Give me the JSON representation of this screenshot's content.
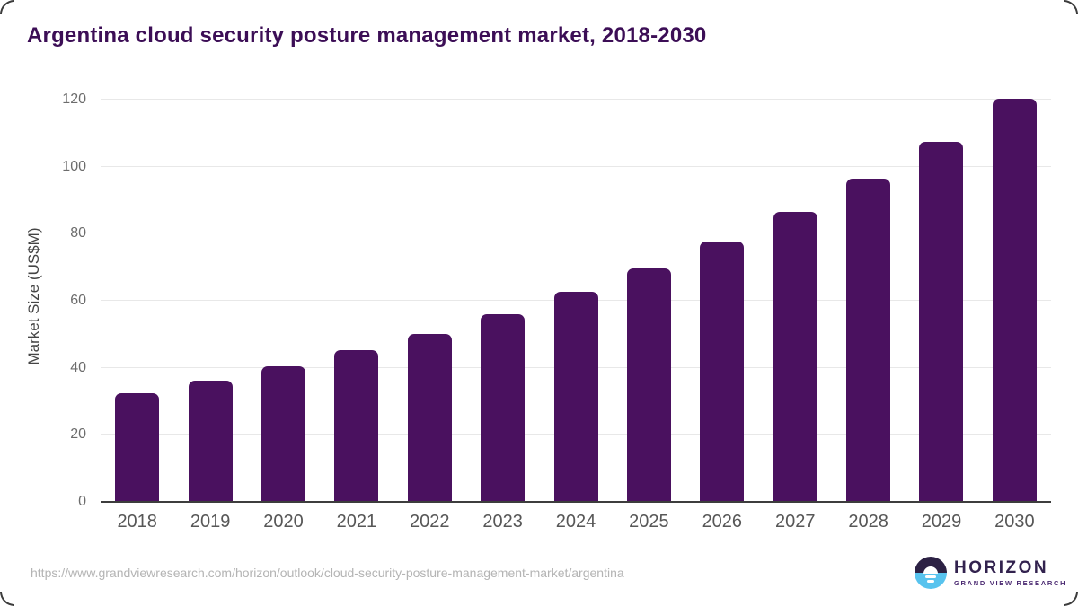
{
  "title": "Argentina cloud security posture management market, 2018-2030",
  "chart_data": {
    "type": "bar",
    "title": "Argentina cloud security posture management market, 2018-2030",
    "categories": [
      "2018",
      "2019",
      "2020",
      "2021",
      "2022",
      "2023",
      "2024",
      "2025",
      "2026",
      "2027",
      "2028",
      "2029",
      "2030"
    ],
    "values": [
      32.4,
      36.2,
      40.5,
      45.2,
      50.2,
      56.0,
      62.8,
      69.8,
      77.6,
      86.5,
      96.5,
      107.5,
      120.2
    ],
    "xlabel": "",
    "ylabel": "Market Size (US$M)",
    "ylim": [
      0,
      123
    ],
    "yticks": [
      0,
      20,
      40,
      60,
      80,
      100,
      120
    ],
    "grid": true,
    "legend": "none",
    "bar_color": "#4a115f"
  },
  "colors": {
    "title": "#3c0e56",
    "bar": "#4a115f",
    "gridline": "#e8e8e8",
    "axis_line": "#3d3d3d",
    "tick_text": "#6c6c6c",
    "logo_navy": "#2c2144",
    "logo_blue": "#58c3ee"
  },
  "footer": {
    "source_url": "https://www.grandviewresearch.com/horizon/outlook/cloud-security-posture-management-market/argentina",
    "logo": {
      "name": "HORIZON",
      "subtitle": "GRAND VIEW RESEARCH"
    }
  }
}
